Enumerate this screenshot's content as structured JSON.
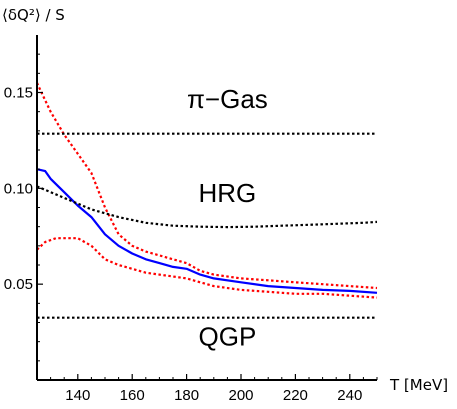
{
  "chart_data": {
    "type": "line",
    "title": "",
    "xlabel": "T [MeV]",
    "ylabel": "⟨δQ²⟩ / S",
    "xlim": [
      125,
      250
    ],
    "ylim": [
      0,
      0.18
    ],
    "x_ticks": [
      140,
      160,
      180,
      200,
      220,
      240
    ],
    "y_ticks": [
      0.05,
      0.1,
      0.15
    ],
    "x_tick_labels": [
      "140",
      "160",
      "180",
      "200",
      "220",
      "240"
    ],
    "y_tick_labels": [
      "0.05",
      "0.10",
      "0.15"
    ],
    "grid": false,
    "legend": "none",
    "annotations": [
      {
        "text": "π−Gas",
        "x": 195,
        "y": 0.142
      },
      {
        "text": "HRG",
        "x": 195,
        "y": 0.093
      },
      {
        "text": "QGP",
        "x": 195,
        "y": 0.018
      }
    ],
    "series": [
      {
        "color": "#0000ff",
        "style": "solid",
        "x": [
          125,
          128,
          130,
          135,
          140,
          145,
          150,
          155,
          160,
          165,
          170,
          175,
          180,
          185,
          190,
          200,
          210,
          220,
          230,
          240,
          250
        ],
        "y": [
          0.11,
          0.109,
          0.105,
          0.098,
          0.091,
          0.085,
          0.076,
          0.07,
          0.066,
          0.063,
          0.061,
          0.059,
          0.058,
          0.055,
          0.053,
          0.051,
          0.049,
          0.048,
          0.047,
          0.0465,
          0.0455
        ]
      },
      {
        "color": "#ff0000",
        "style": "dotted",
        "x": [
          125,
          127,
          130,
          135,
          140,
          145,
          150,
          155,
          160,
          165,
          170,
          175,
          180,
          185,
          190,
          200,
          210,
          220,
          230,
          240,
          250
        ],
        "y": [
          0.155,
          0.149,
          0.14,
          0.128,
          0.118,
          0.108,
          0.09,
          0.076,
          0.07,
          0.067,
          0.065,
          0.063,
          0.061,
          0.057,
          0.055,
          0.053,
          0.052,
          0.051,
          0.05,
          0.049,
          0.048
        ]
      },
      {
        "color": "#ff0000",
        "style": "dotted",
        "x": [
          125,
          128,
          132,
          136,
          140,
          145,
          150,
          155,
          160,
          165,
          170,
          175,
          180,
          185,
          190,
          200,
          210,
          220,
          230,
          240,
          250
        ],
        "y": [
          0.068,
          0.072,
          0.074,
          0.074,
          0.074,
          0.07,
          0.063,
          0.06,
          0.058,
          0.056,
          0.055,
          0.054,
          0.053,
          0.051,
          0.049,
          0.047,
          0.046,
          0.045,
          0.045,
          0.044,
          0.043
        ]
      },
      {
        "color": "#000000",
        "style": "dotted",
        "x": [
          125,
          135,
          145,
          155,
          165,
          175,
          185,
          195,
          205,
          215,
          225,
          235,
          245,
          250
        ],
        "y": [
          0.101,
          0.095,
          0.089,
          0.085,
          0.082,
          0.0805,
          0.08,
          0.0798,
          0.08,
          0.0805,
          0.081,
          0.0815,
          0.082,
          0.0825
        ]
      },
      {
        "color": "#000000",
        "style": "dotted",
        "x": [
          125,
          250
        ],
        "y": [
          0.1285,
          0.1285
        ]
      },
      {
        "color": "#000000",
        "style": "dotted",
        "x": [
          125,
          250
        ],
        "y": [
          0.0325,
          0.0325
        ]
      }
    ]
  }
}
